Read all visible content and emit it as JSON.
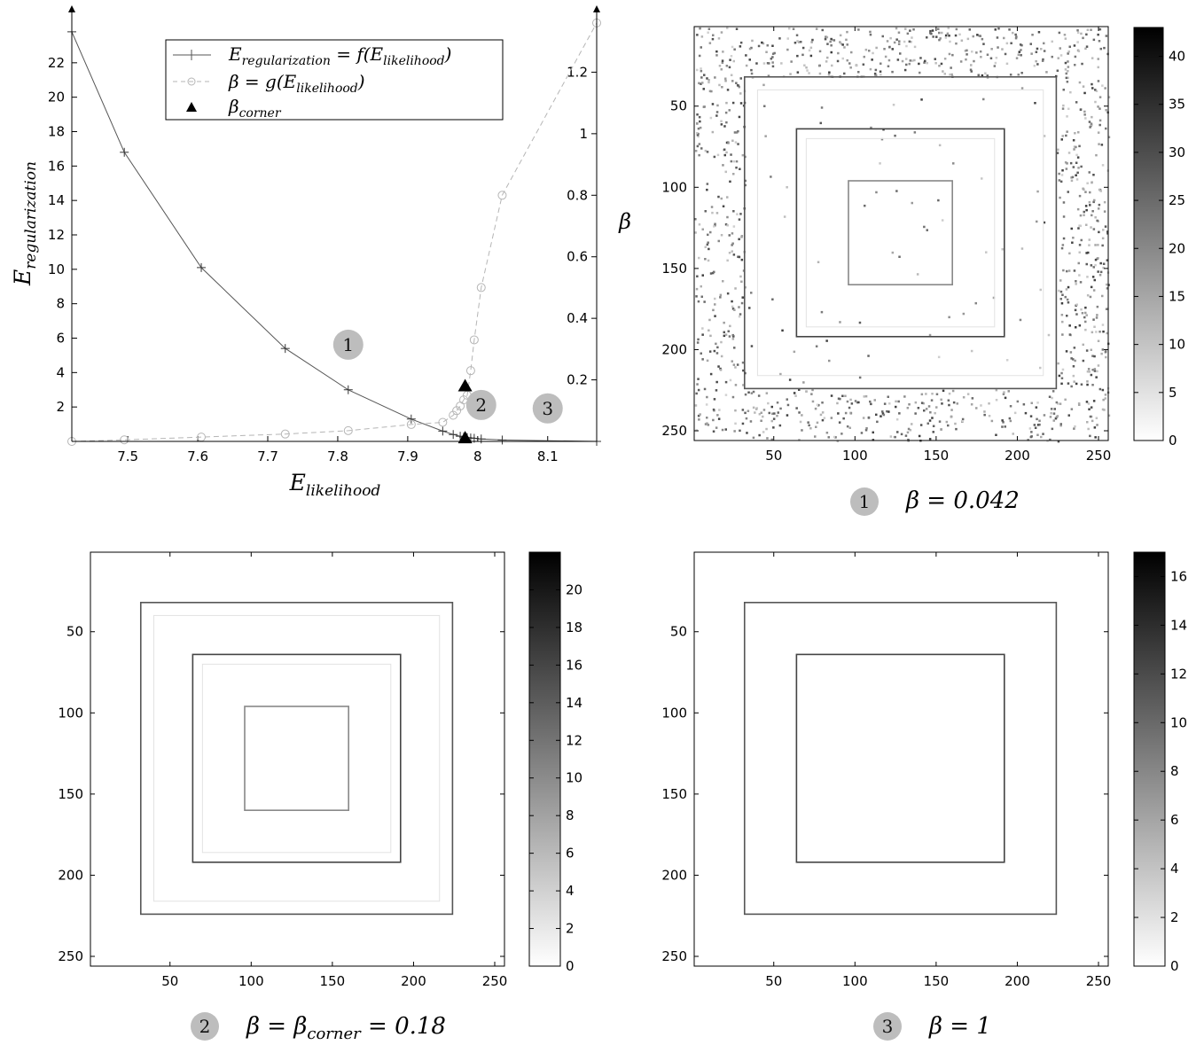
{
  "colors": {
    "curve_f": "#555555",
    "curve_g": "#b5b5b5",
    "corner_marker": "#000000",
    "badge": "#bdbdbd"
  },
  "chart_data": [
    {
      "type": "line",
      "xlabel": "E_likelihood",
      "ylabel": "E_regularization",
      "y2label": "β",
      "xlim": [
        7.42,
        8.17
      ],
      "ylim": [
        0,
        24
      ],
      "y2lim": [
        0,
        1.4
      ],
      "xticks": [
        "7.5",
        "7.6",
        "7.7",
        "7.8",
        "7.9",
        "8",
        "8.1"
      ],
      "yticks": [
        "2",
        "4",
        "6",
        "8",
        "10",
        "12",
        "14",
        "16",
        "18",
        "20",
        "22"
      ],
      "y2ticks": [
        "0.2",
        "0.4",
        "0.6",
        "0.8",
        "1",
        "1.2"
      ],
      "legend_position": "top-center",
      "legend": [
        "E_regularization = f(E_likelihood)",
        "β = g(E_likelihood)",
        "β_corner"
      ],
      "series": [
        {
          "name": "E_regularization = f(E_likelihood)",
          "axis": "left",
          "marker": "plus",
          "x": [
            7.42,
            7.495,
            7.605,
            7.725,
            7.815,
            7.905,
            7.95,
            7.965,
            7.975,
            7.98,
            7.985,
            7.99,
            7.995,
            8.005,
            8.035,
            8.17
          ],
          "y": [
            23.8,
            16.8,
            10.1,
            5.4,
            3.0,
            1.3,
            0.6,
            0.4,
            0.3,
            0.25,
            0.22,
            0.2,
            0.18,
            0.14,
            0.08,
            0.0
          ]
        },
        {
          "name": "β = g(E_likelihood)",
          "axis": "right",
          "marker": "circle",
          "x": [
            7.42,
            7.495,
            7.605,
            7.725,
            7.815,
            7.905,
            7.95,
            7.965,
            7.97,
            7.975,
            7.98,
            7.985,
            7.99,
            7.995,
            8.005,
            8.035,
            8.17
          ],
          "y": [
            0.0,
            0.005,
            0.014,
            0.024,
            0.035,
            0.055,
            0.062,
            0.085,
            0.1,
            0.115,
            0.135,
            0.15,
            0.23,
            0.33,
            0.5,
            0.8,
            1.36
          ]
        },
        {
          "name": "β_corner",
          "axis": "both",
          "marker": "triangle",
          "x": [
            7.982,
            7.982
          ],
          "y": [
            0.2,
            0.18
          ],
          "y_axis": [
            "left",
            "right"
          ]
        }
      ],
      "annotations": [
        {
          "label": "1",
          "x": 7.815,
          "y": 5.0
        },
        {
          "label": "2",
          "x": 8.005,
          "y": 1.5
        },
        {
          "label": "3",
          "x": 8.1,
          "y": 1.3
        }
      ]
    },
    {
      "type": "heatmap",
      "id": "map1",
      "caption_badge": "1",
      "caption": "β = 0.042",
      "xticks": [
        "50",
        "100",
        "150",
        "200",
        "250"
      ],
      "yticks": [
        "50",
        "100",
        "150",
        "200",
        "250"
      ],
      "xlim": [
        1,
        256
      ],
      "ylim": [
        1,
        256
      ],
      "colorbar_ticks": [
        "0",
        "5",
        "10",
        "15",
        "20",
        "25",
        "30",
        "35",
        "40"
      ],
      "colorbar_range": [
        0,
        43
      ],
      "squares": [
        [
          32,
          32,
          224,
          224
        ],
        [
          64,
          64,
          192,
          192
        ],
        [
          96,
          96,
          160,
          160
        ]
      ],
      "noise": true
    },
    {
      "type": "heatmap",
      "id": "map2",
      "caption_badge": "2",
      "caption": "β = β_corner = 0.18",
      "xticks": [
        "50",
        "100",
        "150",
        "200",
        "250"
      ],
      "yticks": [
        "50",
        "100",
        "150",
        "200",
        "250"
      ],
      "xlim": [
        1,
        256
      ],
      "ylim": [
        1,
        256
      ],
      "colorbar_ticks": [
        "0",
        "2",
        "4",
        "6",
        "8",
        "10",
        "12",
        "14",
        "16",
        "18",
        "20"
      ],
      "colorbar_range": [
        0,
        22
      ],
      "squares": [
        [
          32,
          32,
          224,
          224
        ],
        [
          64,
          64,
          192,
          192
        ],
        [
          96,
          96,
          160,
          160
        ]
      ],
      "noise": false
    },
    {
      "type": "heatmap",
      "id": "map3",
      "caption_badge": "3",
      "caption": "β = 1",
      "xticks": [
        "50",
        "100",
        "150",
        "200",
        "250"
      ],
      "yticks": [
        "50",
        "100",
        "150",
        "200",
        "250"
      ],
      "xlim": [
        1,
        256
      ],
      "ylim": [
        1,
        256
      ],
      "colorbar_ticks": [
        "0",
        "2",
        "4",
        "6",
        "8",
        "10",
        "12",
        "14",
        "16"
      ],
      "colorbar_range": [
        0,
        17
      ],
      "squares": [
        [
          32,
          32,
          224,
          224
        ],
        [
          64,
          64,
          192,
          192
        ]
      ],
      "noise": false
    }
  ]
}
